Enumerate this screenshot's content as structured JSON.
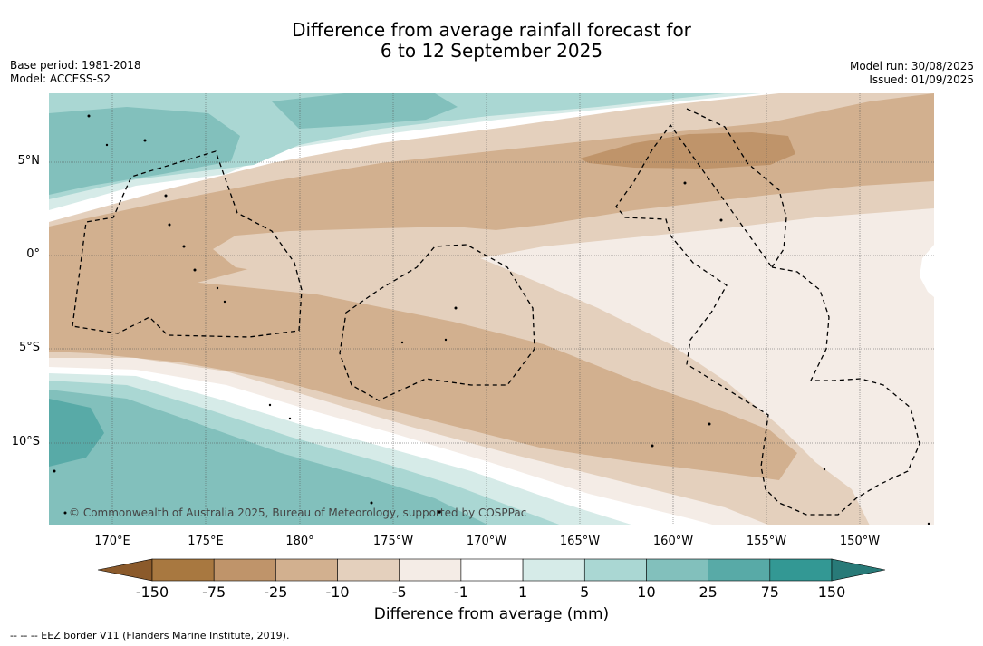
{
  "title_line1": "Difference from average rainfall forecast for",
  "title_line2": "6 to 12 September 2025",
  "base_period": "Base period: 1981-2018",
  "model": "Model: ACCESS-S2",
  "model_run": "Model run: 30/08/2025",
  "issued": "Issued: 01/09/2025",
  "copyright": "© Commonwealth of Australia 2025, Bureau of Meteorology, supported by COSPPac",
  "lat_labels": [
    "5°N",
    "0°",
    "5°S",
    "10°S"
  ],
  "lon_labels": [
    "170°E",
    "175°E",
    "180°",
    "175°W",
    "170°W",
    "165°W",
    "160°W",
    "155°W",
    "150°W"
  ],
  "colorbar": {
    "ticks": [
      "-150",
      "-75",
      "-25",
      "-10",
      "-5",
      "-1",
      "1",
      "5",
      "10",
      "25",
      "75",
      "150"
    ],
    "colors": [
      "#8b5a2b",
      "#a87840",
      "#bf946a",
      "#d2b08f",
      "#e4d0bd",
      "#f4ece6",
      "#ffffff",
      "#d6ebe8",
      "#aad7d3",
      "#82c0bc",
      "#58aaa7",
      "#339894",
      "#287a78"
    ],
    "label": "Difference from average (mm)"
  },
  "footer": "--  --  -- EEZ border V11 (Flanders Marine Institute, 2019)."
}
